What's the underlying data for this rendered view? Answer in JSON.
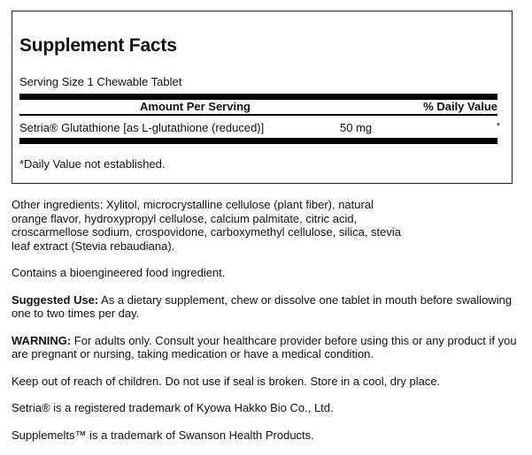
{
  "facts": {
    "title": "Supplement Facts",
    "serving_size": "Serving Size 1 Chewable Tablet",
    "header_amount": "Amount Per Serving",
    "header_dv": "% Daily Value",
    "rows": [
      {
        "name": "Setria® Glutathione [as L-glutathione (reduced)]",
        "amount": "50 mg",
        "dv": "*"
      }
    ],
    "footnote": "*Daily Value not established."
  },
  "paragraphs": {
    "other_ingredients": "Other ingredients: Xylitol, microcrystalline cellulose (plant fiber), natural orange flavor, hydroxypropyl cellulose, calcium palmitate, citric acid, croscarmellose sodium, crospovidone, carboxymethyl cellulose, silica, stevia leaf extract (Stevia rebaudiana).",
    "bioengineered": "Contains a bioengineered food ingredient.",
    "suggested_label": "Suggested Use:",
    "suggested_text": " As a dietary supplement, chew or dissolve one tablet in mouth before swallowing one to two times per day.",
    "warning_label": "WARNING:",
    "warning_text": " For adults only. Consult your healthcare provider before using this or any product if you are pregnant or nursing, taking medication or have a medical condition.",
    "storage": "Keep out of reach of children. Do not use if seal is broken. Store in a cool, dry place.",
    "setria_tm": "Setria® is a registered trademark of Kyowa Hakko Bio Co., Ltd.",
    "supplemelts_tm": "Supplemelts™ is a trademark of Swanson Health Products."
  }
}
